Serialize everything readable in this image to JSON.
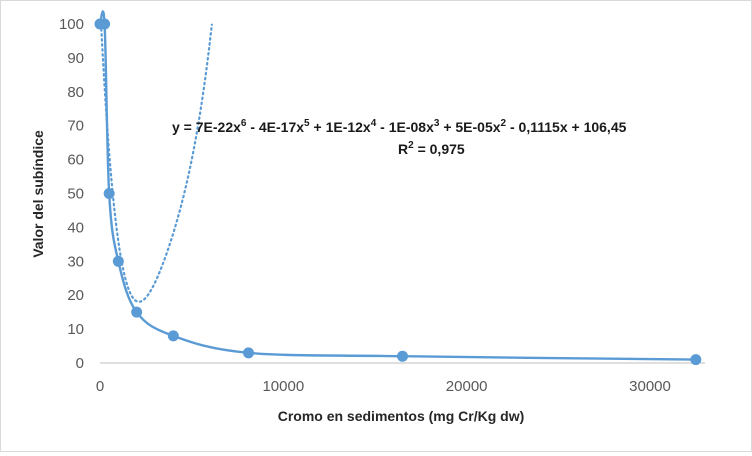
{
  "chart_data": {
    "type": "scatter",
    "title": "",
    "xlabel": "Cromo en sedimentos (mg Cr/Kg dw)",
    "ylabel": "Valor del subíndice",
    "xlim": [
      0,
      33000
    ],
    "ylim": [
      0,
      100
    ],
    "x_ticks": [
      0,
      10000,
      20000,
      30000
    ],
    "x_tick_labels": [
      "0",
      "10000",
      "20000",
      "30000"
    ],
    "y_ticks": [
      0,
      10,
      20,
      30,
      40,
      50,
      60,
      70,
      80,
      90,
      100
    ],
    "y_tick_labels": [
      "0",
      "10",
      "20",
      "30",
      "40",
      "50",
      "60",
      "70",
      "80",
      "90",
      "100"
    ],
    "grid": false,
    "legend": "none",
    "series": [
      {
        "x": [
          0,
          250,
          500,
          1000,
          2000,
          4000,
          8100,
          16500,
          32500
        ],
        "y": [
          100,
          100,
          50,
          30,
          15,
          8,
          3,
          2,
          1
        ],
        "color": "#5b9bd5",
        "line": "smooth"
      }
    ],
    "trendline": {
      "type": "polynomial",
      "order": 6,
      "style": "dotted",
      "color": "#5b9bd5",
      "coefficients": [
        106.45,
        -0.1115,
        5e-05,
        -1e-08,
        1e-12,
        -4e-17,
        7e-22
      ],
      "equation": {
        "prefix": "y = 7E-22x",
        "exp6": "6",
        "t5": " - 4E-17x",
        "exp5": "5",
        "t4": " + 1E-12x",
        "exp4": "4",
        "t3": " - 1E-08x",
        "exp3": "3",
        "t2": " + 5E-05x",
        "exp2": "2",
        "tail": " - 0,1115x + 106,45"
      },
      "r2": {
        "prefix": "R",
        "sup": "2",
        "tail": " = 0,975"
      }
    }
  }
}
